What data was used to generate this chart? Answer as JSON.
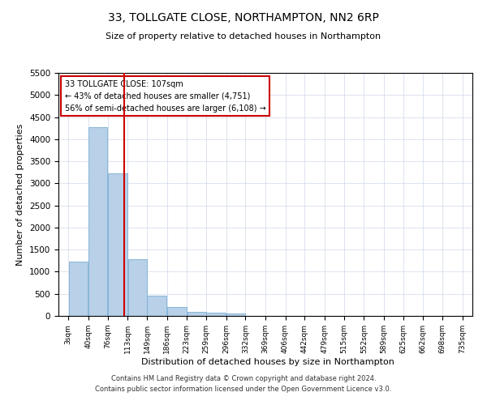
{
  "title": "33, TOLLGATE CLOSE, NORTHAMPTON, NN2 6RP",
  "subtitle": "Size of property relative to detached houses in Northampton",
  "xlabel": "Distribution of detached houses by size in Northampton",
  "ylabel": "Number of detached properties",
  "footer_line1": "Contains HM Land Registry data © Crown copyright and database right 2024.",
  "footer_line2": "Contains public sector information licensed under the Open Government Licence v3.0.",
  "annotation_line1": "33 TOLLGATE CLOSE: 107sqm",
  "annotation_line2": "← 43% of detached houses are smaller (4,751)",
  "annotation_line3": "56% of semi-detached houses are larger (6,108) →",
  "bar_color": "#b8d0e8",
  "bar_edge_color": "#7aafd4",
  "vline_color": "#cc0000",
  "annotation_box_edge_color": "#cc0000",
  "bins": [
    3,
    40,
    76,
    113,
    149,
    186,
    223,
    259,
    296,
    332,
    369,
    406,
    442,
    479,
    515,
    552,
    589,
    625,
    662,
    698,
    735
  ],
  "counts": [
    1230,
    4270,
    3220,
    1280,
    460,
    195,
    95,
    70,
    50,
    0,
    0,
    0,
    0,
    0,
    0,
    0,
    0,
    0,
    0,
    0
  ],
  "property_size": 107,
  "ylim": [
    0,
    5500
  ],
  "yticks": [
    0,
    500,
    1000,
    1500,
    2000,
    2500,
    3000,
    3500,
    4000,
    4500,
    5000,
    5500
  ],
  "background_color": "#ffffff",
  "grid_color": "#d0d8e8"
}
